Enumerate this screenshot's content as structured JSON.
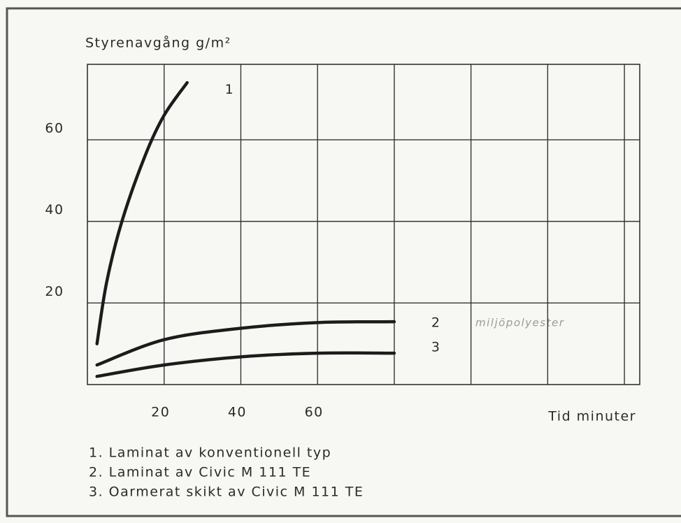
{
  "chart_data": {
    "type": "line",
    "ylabel": "Styrenavgång g/m²",
    "xlabel": "Tid minuter",
    "annotation": "miljöpolyester",
    "xlim": [
      0,
      144
    ],
    "ylim": [
      0,
      78.5
    ],
    "xticks": [
      20,
      40,
      60
    ],
    "yticks": [
      20,
      40,
      60
    ],
    "grid": true,
    "color": "#1c1c1c",
    "series": [
      {
        "name": "1",
        "x": [
          2.5,
          5,
          9,
          15,
          20,
          26
        ],
        "values": [
          10,
          25,
          40,
          56,
          66,
          74
        ]
      },
      {
        "name": "2",
        "x": [
          2.5,
          20,
          40,
          60,
          80
        ],
        "values": [
          4.8,
          11,
          13.8,
          15.2,
          15.4
        ]
      },
      {
        "name": "3",
        "x": [
          2.5,
          20,
          40,
          60,
          80
        ],
        "values": [
          2,
          4.8,
          6.8,
          7.7,
          7.7
        ]
      }
    ],
    "notes": [
      "1. Laminat av konventionell typ",
      "2. Laminat av Civic M 111 TE",
      "3. Oarmerat skikt av Civic M 111 TE"
    ]
  }
}
